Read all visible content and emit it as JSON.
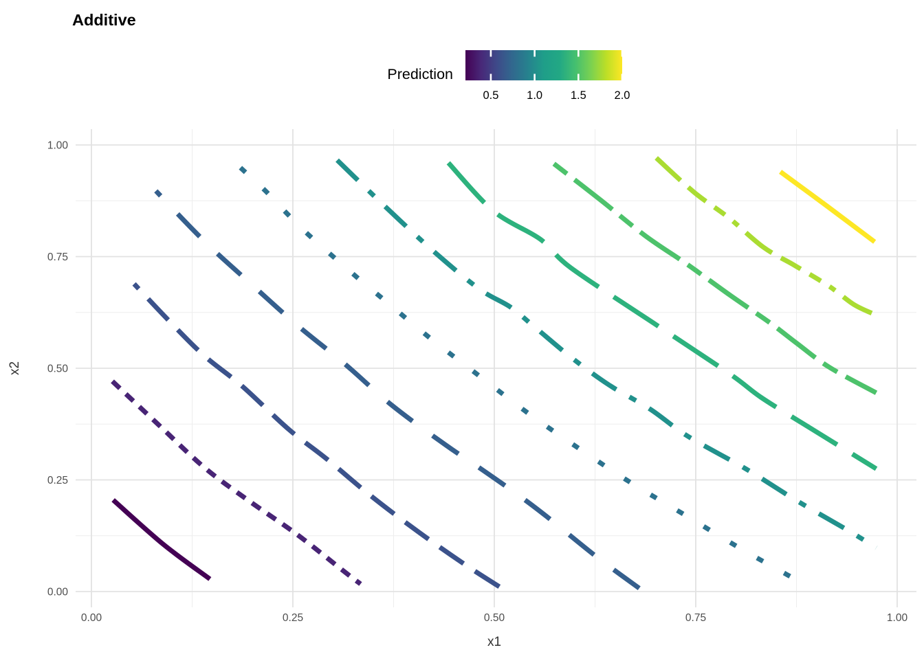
{
  "title": "Additive",
  "legend": {
    "title": "Prediction",
    "tick_labels": [
      "0.5",
      "1.0",
      "1.5",
      "2.0"
    ],
    "tick_values": [
      0.5,
      1.0,
      1.5,
      2.0
    ],
    "limits": [
      0.21,
      2.0
    ],
    "gradient": [
      "#440154",
      "#482878",
      "#3E4A89",
      "#31688E",
      "#26828E",
      "#1F9E89",
      "#22A884",
      "#44BF70",
      "#7AD151",
      "#BDDF26",
      "#FDE725"
    ]
  },
  "axes": {
    "x": {
      "title": "x1",
      "tick_labels": [
        "0.00",
        "0.25",
        "0.50",
        "0.75",
        "1.00"
      ],
      "tick_values": [
        0,
        0.25,
        0.5,
        0.75,
        1.0
      ]
    },
    "y": {
      "title": "x2",
      "tick_labels": [
        "0.00",
        "0.25",
        "0.50",
        "0.75",
        "1.00"
      ],
      "tick_values": [
        0,
        0.25,
        0.5,
        0.75,
        1.0
      ]
    }
  },
  "style": {
    "background": "#FFFFFF",
    "grid_major_color": "#E2E2E2",
    "grid_minor_color": "#EDEDED",
    "axis_text_color": "#4D4D4D",
    "text_color": "#000000",
    "contour_line_width": 7
  },
  "chart_data": {
    "type": "contour",
    "title": "Additive",
    "xlabel": "x1",
    "ylabel": "x2",
    "xlim": [
      0,
      1
    ],
    "ylim": [
      0,
      1
    ],
    "grid": true,
    "colormap": "viridis",
    "legend_position": "top",
    "colorbar": {
      "label": "Prediction",
      "ticks": [
        0.5,
        1.0,
        1.5,
        2.0
      ],
      "limits": [
        0.21,
        2.0
      ]
    },
    "major_gridlines": [
      0,
      0.25,
      0.5,
      0.75,
      1.0
    ],
    "minor_gridlines": [
      0.125,
      0.375,
      0.625,
      0.875
    ],
    "series": [
      {
        "level": 0.2,
        "color": "#440154",
        "linetype": "solid",
        "dash": [],
        "dash_offset": 0,
        "points": [
          [
            0.027,
            0.205
          ],
          [
            0.089,
            0.106
          ],
          [
            0.147,
            0.028
          ]
        ]
      },
      {
        "level": 0.4,
        "color": "#482475",
        "linetype": "dotted",
        "dash": [
          15,
          12
        ],
        "dash_offset": 0,
        "points": [
          [
            0.026,
            0.471
          ],
          [
            0.083,
            0.374
          ],
          [
            0.14,
            0.278
          ],
          [
            0.194,
            0.205
          ],
          [
            0.255,
            0.128
          ],
          [
            0.315,
            0.043
          ],
          [
            0.334,
            0.017
          ]
        ]
      },
      {
        "level": 0.6,
        "color": "#3B528B",
        "linetype": "dashed",
        "dash": [
          42,
          20
        ],
        "dash_offset": 32,
        "points": [
          [
            0.053,
            0.689
          ],
          [
            0.097,
            0.605
          ],
          [
            0.14,
            0.528
          ],
          [
            0.187,
            0.46
          ],
          [
            0.245,
            0.363
          ],
          [
            0.292,
            0.297
          ],
          [
            0.347,
            0.214
          ],
          [
            0.407,
            0.132
          ],
          [
            0.464,
            0.06
          ],
          [
            0.514,
            0.002
          ]
        ]
      },
      {
        "level": 0.8,
        "color": "#355F8D",
        "linetype": "long-dash",
        "dash": [
          46,
          36
        ],
        "dash_offset": 36,
        "points": [
          [
            0.08,
            0.897
          ],
          [
            0.141,
            0.783
          ],
          [
            0.198,
            0.689
          ],
          [
            0.255,
            0.597
          ],
          [
            0.313,
            0.512
          ],
          [
            0.373,
            0.417
          ],
          [
            0.439,
            0.329
          ],
          [
            0.484,
            0.274
          ],
          [
            0.529,
            0.217
          ],
          [
            0.565,
            0.168
          ],
          [
            0.629,
            0.075
          ],
          [
            0.684,
            0.002
          ]
        ]
      },
      {
        "level": 1.0,
        "color": "#2C728E",
        "linetype": "sparse-dot",
        "dash": [
          10,
          35
        ],
        "dash_offset": 0,
        "points": [
          [
            0.185,
            0.949
          ],
          [
            0.216,
            0.897
          ],
          [
            0.243,
            0.846
          ],
          [
            0.27,
            0.798
          ],
          [
            0.33,
            0.703
          ],
          [
            0.36,
            0.658
          ],
          [
            0.42,
            0.568
          ],
          [
            0.482,
            0.482
          ],
          [
            0.543,
            0.398
          ],
          [
            0.607,
            0.318
          ],
          [
            0.671,
            0.242
          ],
          [
            0.737,
            0.171
          ],
          [
            0.805,
            0.097
          ],
          [
            0.872,
            0.029
          ]
        ]
      },
      {
        "level": 1.2,
        "color": "#21918C",
        "linetype": "dash-dot",
        "dash": [
          42,
          22,
          11,
          22
        ],
        "dash_offset": 0,
        "points": [
          [
            0.305,
            0.966
          ],
          [
            0.364,
            0.863
          ],
          [
            0.424,
            0.763
          ],
          [
            0.481,
            0.678
          ],
          [
            0.52,
            0.637
          ],
          [
            0.549,
            0.594
          ],
          [
            0.595,
            0.525
          ],
          [
            0.642,
            0.463
          ],
          [
            0.693,
            0.409
          ],
          [
            0.74,
            0.348
          ],
          [
            0.812,
            0.275
          ],
          [
            0.874,
            0.205
          ],
          [
            0.939,
            0.137
          ],
          [
            0.974,
            0.098
          ]
        ]
      },
      {
        "level": 1.4,
        "color": "#2DB27D",
        "linetype": "long-dash",
        "dash": [
          78,
          26
        ],
        "dash_offset": 0,
        "points": [
          [
            0.443,
            0.96
          ],
          [
            0.499,
            0.852
          ],
          [
            0.557,
            0.789
          ],
          [
            0.595,
            0.725
          ],
          [
            0.697,
            0.602
          ],
          [
            0.791,
            0.489
          ],
          [
            0.831,
            0.435
          ],
          [
            0.885,
            0.374
          ],
          [
            0.974,
            0.275
          ]
        ]
      },
      {
        "level": 1.6,
        "color": "#4DC26B",
        "linetype": "short-long-dash",
        "dash": [
          24,
          14,
          70,
          14
        ],
        "dash_offset": 0,
        "points": [
          [
            0.574,
            0.958
          ],
          [
            0.631,
            0.878
          ],
          [
            0.687,
            0.797
          ],
          [
            0.74,
            0.732
          ],
          [
            0.793,
            0.663
          ],
          [
            0.842,
            0.602
          ],
          [
            0.876,
            0.555
          ],
          [
            0.916,
            0.502
          ],
          [
            0.974,
            0.445
          ]
        ]
      },
      {
        "level": 1.8,
        "color": "#AADC32",
        "linetype": "multi-dash",
        "dash": [
          48,
          15,
          33,
          15,
          19,
          15,
          10,
          15
        ],
        "dash_offset": 0,
        "points": [
          [
            0.701,
            0.971
          ],
          [
            0.748,
            0.894
          ],
          [
            0.791,
            0.837
          ],
          [
            0.834,
            0.771
          ],
          [
            0.874,
            0.729
          ],
          [
            0.916,
            0.683
          ],
          [
            0.946,
            0.643
          ],
          [
            0.97,
            0.622
          ]
        ]
      },
      {
        "level": 2.0,
        "color": "#FDE725",
        "linetype": "solid",
        "dash": [],
        "dash_offset": 0,
        "points": [
          [
            0.855,
            0.94
          ],
          [
            0.913,
            0.863
          ],
          [
            0.972,
            0.783
          ]
        ]
      }
    ]
  }
}
